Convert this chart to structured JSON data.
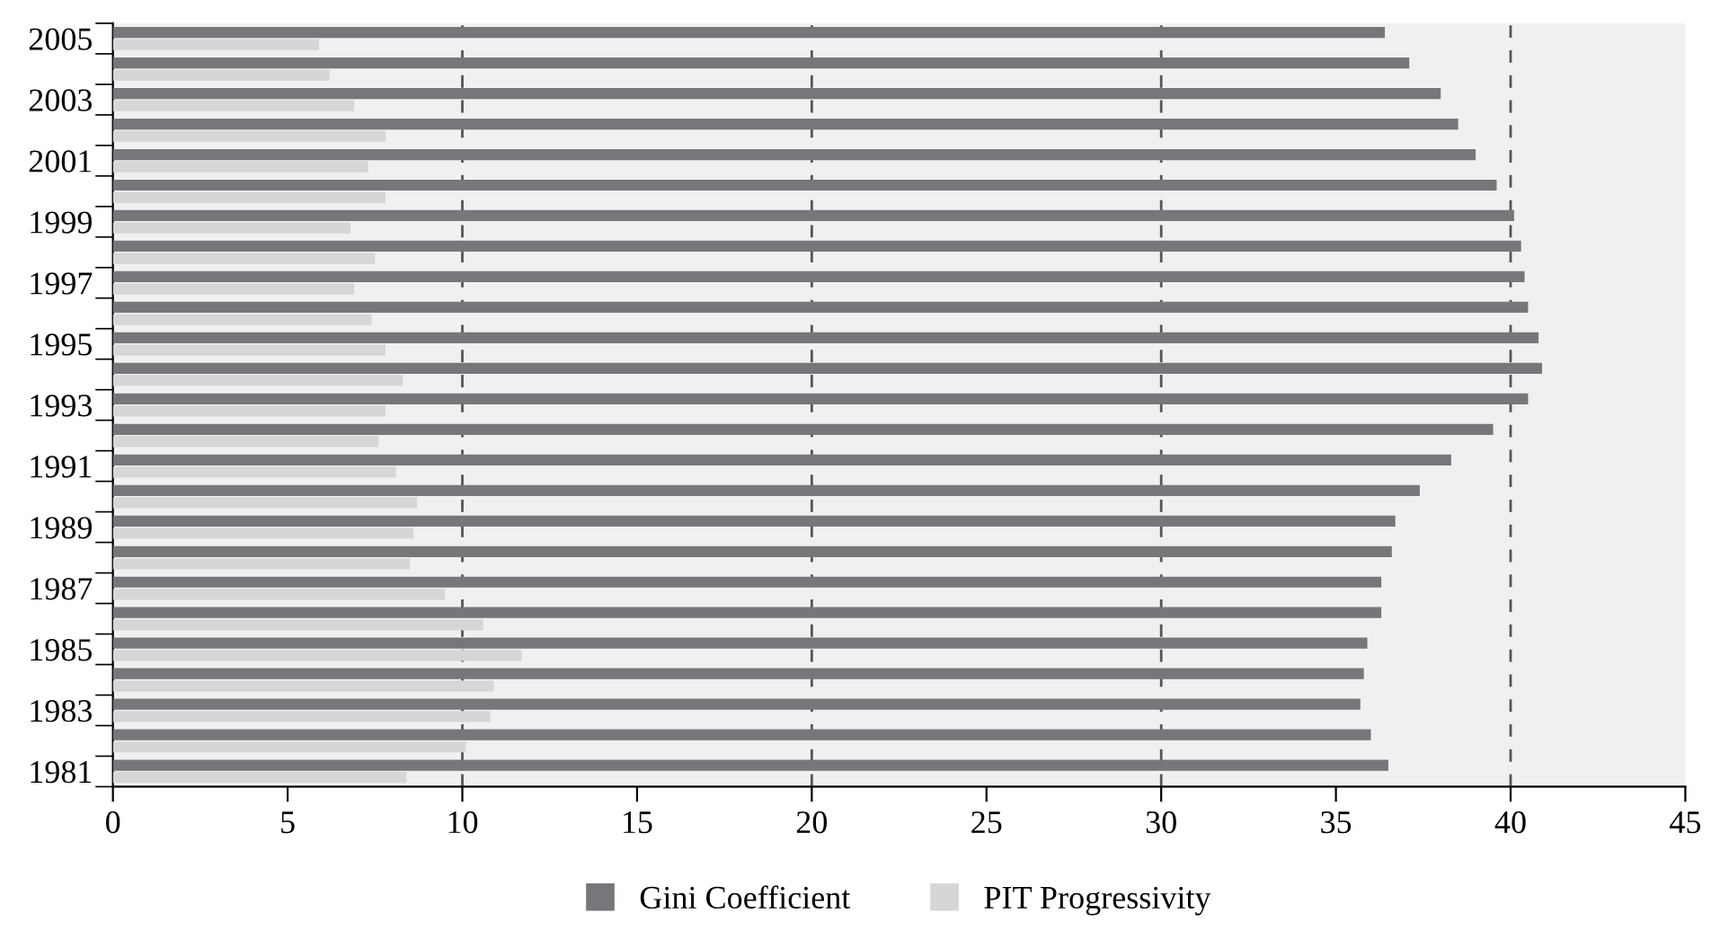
{
  "chart_data": {
    "type": "bar",
    "orientation": "horizontal",
    "categories": [
      "2005",
      null,
      "2003",
      null,
      "2001",
      null,
      "1999",
      null,
      "1997",
      null,
      "1995",
      null,
      "1993",
      null,
      "1991",
      null,
      "1989",
      null,
      "1987",
      null,
      "1985",
      null,
      "1983",
      null,
      "1981"
    ],
    "series": [
      {
        "name": "Gini Coefficient",
        "color": "#77777b",
        "values": [
          36.4,
          37.1,
          38.0,
          38.5,
          39.0,
          39.6,
          40.1,
          40.3,
          40.4,
          40.5,
          40.8,
          40.9,
          40.5,
          39.5,
          38.3,
          37.4,
          36.7,
          36.6,
          36.3,
          36.3,
          35.9,
          35.8,
          35.7,
          36.0,
          36.5
        ]
      },
      {
        "name": "PIT Progressivity",
        "color": "#d6d6d6",
        "values": [
          5.9,
          6.2,
          6.9,
          7.8,
          7.3,
          7.8,
          6.8,
          7.5,
          6.9,
          7.4,
          7.8,
          8.3,
          7.8,
          7.6,
          8.1,
          8.7,
          8.6,
          8.5,
          9.5,
          10.6,
          11.7,
          10.9,
          10.8,
          10.1,
          8.4
        ]
      }
    ],
    "xlim": [
      0,
      45
    ],
    "xticks": [
      0,
      5,
      10,
      15,
      20,
      25,
      30,
      35,
      40,
      45
    ],
    "ref_lines": [
      {
        "axis": "x",
        "value": 10,
        "color": "#555555",
        "line_style": "dashed"
      },
      {
        "axis": "x",
        "value": 20,
        "color": "#555555",
        "line_style": "dashed"
      },
      {
        "axis": "x",
        "value": 30,
        "color": "#555555",
        "line_style": "dashed"
      },
      {
        "axis": "x",
        "value": 40,
        "color": "#555555",
        "line_style": "dashed"
      }
    ],
    "legend": "bottom"
  }
}
